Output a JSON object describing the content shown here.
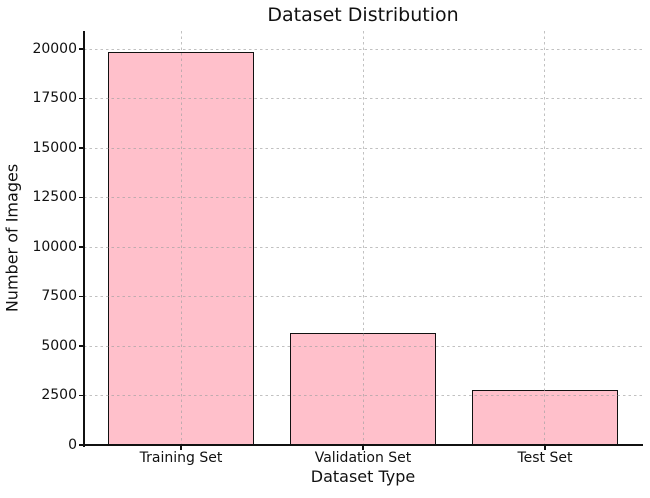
{
  "chart_data": {
    "type": "bar",
    "title": "Dataset Distribution",
    "xlabel": "Dataset Type",
    "ylabel": "Number of Images",
    "categories": [
      "Training Set",
      "Validation Set",
      "Test Set"
    ],
    "values": [
      19850,
      5650,
      2790
    ],
    "ylim": [
      0,
      20900
    ],
    "yticks": [
      0,
      2500,
      5000,
      7500,
      10000,
      12500,
      15000,
      17500,
      20000
    ],
    "grid": true,
    "grid_line_style": "dashed",
    "legend_position": "none",
    "bar_color": "#ffc0cb",
    "bar_edge_color": "#111111",
    "grid_color": "#a0a0a0",
    "text_color": "#111111",
    "background_color": "#ffffff"
  }
}
